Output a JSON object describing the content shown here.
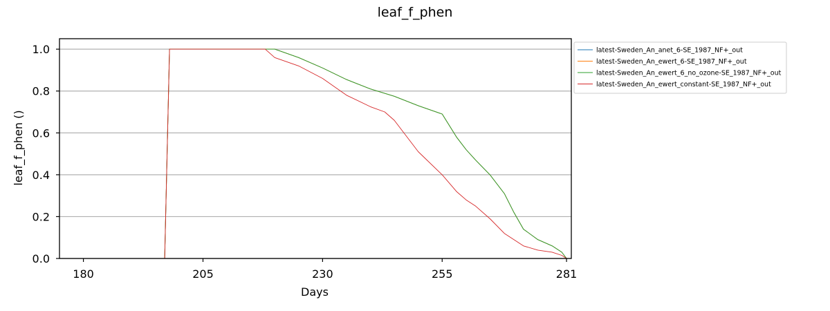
{
  "chart_data": {
    "type": "line",
    "title": "leaf_f_phen",
    "xlabel": "Days",
    "ylabel": "leaf_f_phen ()",
    "xlim": [
      175,
      282
    ],
    "ylim": [
      0.0,
      1.05
    ],
    "xticks": [
      180,
      205,
      230,
      255,
      281
    ],
    "yticks": [
      0.0,
      0.2,
      0.4,
      0.6,
      0.8,
      1.0
    ],
    "xtick_labels": [
      "180",
      "205",
      "230",
      "255",
      "281"
    ],
    "ytick_labels": [
      "0.0",
      "0.2",
      "0.4",
      "0.6",
      "0.8",
      "1.0"
    ],
    "grid": "y-major",
    "legend_location": "outside-right-top",
    "series": [
      {
        "name": "latest-Sweden_An_anet_6-SE_1987_NF+_out",
        "color": "#1f77b4",
        "x": [
          177,
          197,
          198,
          203,
          210,
          215,
          218,
          220,
          225,
          230,
          235,
          240,
          245,
          250,
          255,
          258,
          260,
          262,
          265,
          268,
          270,
          272,
          275,
          278,
          280,
          281
        ],
        "y": [
          0.0,
          0.0,
          1.0,
          1.0,
          1.0,
          1.0,
          1.0,
          1.0,
          0.96,
          0.91,
          0.855,
          0.81,
          0.775,
          0.73,
          0.69,
          0.58,
          0.52,
          0.47,
          0.4,
          0.31,
          0.22,
          0.14,
          0.09,
          0.06,
          0.03,
          0.0
        ]
      },
      {
        "name": "latest-Sweden_An_ewert_6-SE_1987_NF+_out",
        "color": "#ff7f0e",
        "x": [
          177,
          197,
          198,
          203,
          210,
          215,
          218,
          220,
          225,
          230,
          235,
          240,
          245,
          250,
          255,
          258,
          260,
          262,
          265,
          268,
          270,
          272,
          275,
          278,
          280,
          281
        ],
        "y": [
          0.0,
          0.0,
          1.0,
          1.0,
          1.0,
          1.0,
          1.0,
          1.0,
          0.96,
          0.91,
          0.855,
          0.81,
          0.775,
          0.73,
          0.69,
          0.58,
          0.52,
          0.47,
          0.4,
          0.31,
          0.22,
          0.14,
          0.09,
          0.06,
          0.03,
          0.0
        ]
      },
      {
        "name": "latest-Sweden_An_ewert_6_no_ozone-SE_1987_NF+_out",
        "color": "#2ca02c",
        "x": [
          177,
          197,
          198,
          203,
          210,
          215,
          218,
          220,
          225,
          230,
          235,
          240,
          245,
          250,
          255,
          258,
          260,
          262,
          265,
          268,
          270,
          272,
          275,
          278,
          280,
          281
        ],
        "y": [
          0.0,
          0.0,
          1.0,
          1.0,
          1.0,
          1.0,
          1.0,
          1.0,
          0.96,
          0.91,
          0.855,
          0.81,
          0.775,
          0.73,
          0.69,
          0.58,
          0.52,
          0.47,
          0.4,
          0.31,
          0.22,
          0.14,
          0.09,
          0.06,
          0.03,
          0.0
        ]
      },
      {
        "name": "latest-Sweden_An_ewert_constant-SE_1987_NF+_out",
        "color": "#d62728",
        "x": [
          177,
          197,
          198,
          203,
          210,
          215,
          218,
          220,
          225,
          230,
          235,
          240,
          243,
          245,
          250,
          255,
          258,
          260,
          262,
          265,
          268,
          270,
          272,
          275,
          278,
          280,
          281
        ],
        "y": [
          0.0,
          0.0,
          1.0,
          1.0,
          1.0,
          1.0,
          1.0,
          0.96,
          0.92,
          0.86,
          0.78,
          0.725,
          0.7,
          0.66,
          0.51,
          0.4,
          0.32,
          0.28,
          0.25,
          0.19,
          0.12,
          0.09,
          0.06,
          0.04,
          0.03,
          0.015,
          0.0
        ]
      }
    ]
  }
}
